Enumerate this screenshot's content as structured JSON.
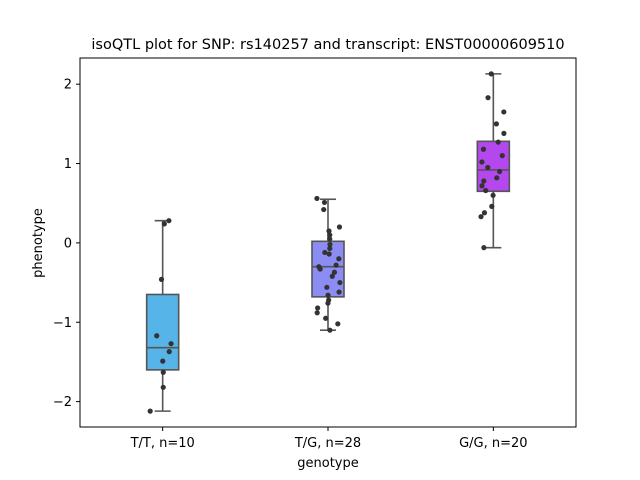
{
  "chart_data": {
    "type": "box",
    "title": "isoQTL plot for SNP: rs140257 and transcript: ENST00000609510",
    "xlabel": "genotype",
    "ylabel": "phenotype",
    "categories": [
      "T/T, n=10",
      "T/G, n=28",
      "G/G, n=20"
    ],
    "ylim": [
      -2.32,
      2.33
    ],
    "yticks": [
      -2,
      -1,
      0,
      1,
      2
    ],
    "ytick_labels": [
      "−2",
      "−1",
      "0",
      "1",
      "2"
    ],
    "grid": false,
    "colors": [
      "#56b4e9",
      "#8c8cf5",
      "#b547ee"
    ],
    "box_edge_color": "#555555",
    "point_color": "#333333",
    "boxes": [
      {
        "whisker_low": -2.12,
        "q1": -1.6,
        "median": -1.32,
        "q3": -0.65,
        "whisker_high": 0.28
      },
      {
        "whisker_low": -1.1,
        "q1": -0.68,
        "median": -0.3,
        "q3": 0.02,
        "whisker_high": 0.55
      },
      {
        "whisker_low": -0.06,
        "q1": 0.65,
        "median": 0.92,
        "q3": 1.28,
        "whisker_high": 2.13
      }
    ],
    "points": [
      [
        0.28,
        0.24,
        -0.46,
        -1.17,
        -1.27,
        -1.37,
        -1.49,
        -1.63,
        -1.82,
        -2.12
      ],
      [
        0.56,
        0.51,
        0.42,
        0.2,
        0.15,
        0.1,
        0.05,
        -0.02,
        -0.07,
        -0.12,
        -0.2,
        -0.28,
        -0.33,
        -0.37,
        -0.42,
        -0.5,
        -0.56,
        -0.62,
        -0.66,
        -0.72,
        -0.76,
        -0.82,
        -0.88,
        -0.95,
        -1.02,
        -1.1,
        -0.3,
        -0.14
      ],
      [
        2.13,
        1.83,
        1.65,
        1.5,
        1.38,
        1.27,
        1.18,
        1.1,
        1.02,
        0.95,
        0.9,
        0.82,
        0.78,
        0.72,
        0.66,
        0.6,
        0.46,
        0.38,
        0.33,
        -0.06
      ]
    ]
  }
}
